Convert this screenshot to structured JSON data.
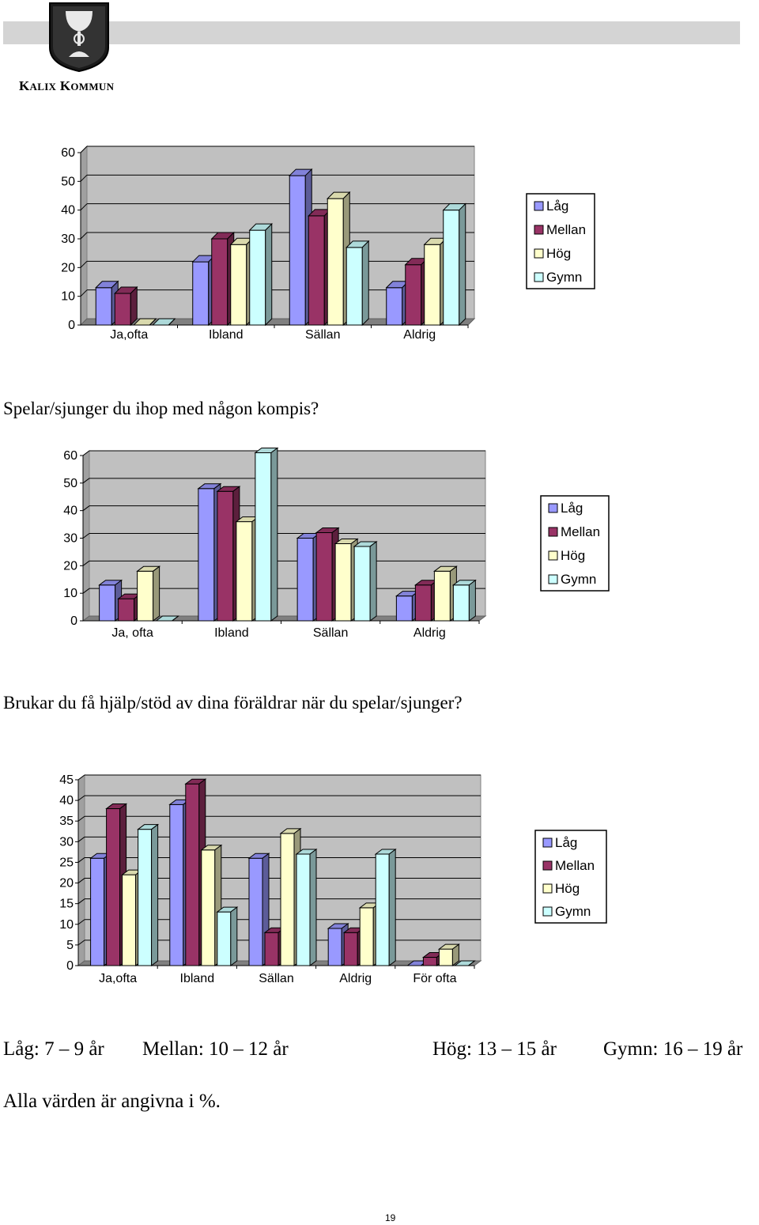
{
  "header": {
    "org_name_k": "K",
    "org_name_alix": "ALIX",
    "org_name_k2": "K",
    "org_name_ommun": "OMMUN"
  },
  "colors": {
    "Låg": "#9999ff",
    "Mellan": "#993366",
    "Hög": "#ffffcc",
    "Gymn": "#ccffff",
    "plot_wall": "#c0c0c0",
    "plot_floor": "#808080"
  },
  "chart_data": [
    {
      "type": "bar",
      "title": "",
      "categories": [
        "Ja,ofta",
        "Ibland",
        "Sällan",
        "Aldrig"
      ],
      "series": [
        {
          "name": "Låg",
          "values": [
            13,
            22,
            52,
            13
          ]
        },
        {
          "name": "Mellan",
          "values": [
            11,
            30,
            38,
            21
          ]
        },
        {
          "name": "Hög",
          "values": [
            0,
            28,
            44,
            28
          ]
        },
        {
          "name": "Gymn",
          "values": [
            0,
            33,
            27,
            40
          ]
        }
      ],
      "ylim": [
        0,
        60
      ],
      "yticks": [
        "0",
        "10",
        "20",
        "30",
        "40",
        "50",
        "60"
      ],
      "grid": true,
      "legend": "right"
    },
    {
      "type": "bar",
      "title": "Spelar/sjunger du ihop med någon kompis?",
      "categories": [
        "Ja, ofta",
        "Ibland",
        "Sällan",
        "Aldrig"
      ],
      "series": [
        {
          "name": "Låg",
          "values": [
            13,
            48,
            30,
            9
          ]
        },
        {
          "name": "Mellan",
          "values": [
            8,
            47,
            32,
            13
          ]
        },
        {
          "name": "Hög",
          "values": [
            18,
            36,
            28,
            18
          ]
        },
        {
          "name": "Gymn",
          "values": [
            0,
            61,
            27,
            13
          ]
        }
      ],
      "ylim": [
        0,
        60
      ],
      "yticks": [
        "0",
        "10",
        "20",
        "30",
        "40",
        "50",
        "60"
      ],
      "grid": true,
      "legend": "right"
    },
    {
      "type": "bar",
      "title": "Brukar du få hjälp/stöd av dina föräldrar när du spelar/sjunger?",
      "categories": [
        "Ja,ofta",
        "Ibland",
        "Sällan",
        "Aldrig",
        "För ofta"
      ],
      "series": [
        {
          "name": "Låg",
          "values": [
            26,
            39,
            26,
            9,
            0
          ]
        },
        {
          "name": "Mellan",
          "values": [
            38,
            44,
            8,
            8,
            2
          ]
        },
        {
          "name": "Hög",
          "values": [
            22,
            28,
            32,
            14,
            4
          ]
        },
        {
          "name": "Gymn",
          "values": [
            33,
            13,
            27,
            27,
            0
          ]
        }
      ],
      "ylim": [
        0,
        45
      ],
      "yticks": [
        "0",
        "5",
        "10",
        "15",
        "20",
        "25",
        "30",
        "35",
        "40",
        "45"
      ],
      "grid": true,
      "legend": "right"
    }
  ],
  "footer": {
    "age_low": "Låg: 7 – 9 år",
    "age_mid": "Mellan: 10 – 12 år",
    "age_high": "Hög: 13 – 15 år",
    "age_gymn": "Gymn: 16 – 19 år",
    "note": "Alla värden är angivna i  %."
  },
  "page_number": "19"
}
